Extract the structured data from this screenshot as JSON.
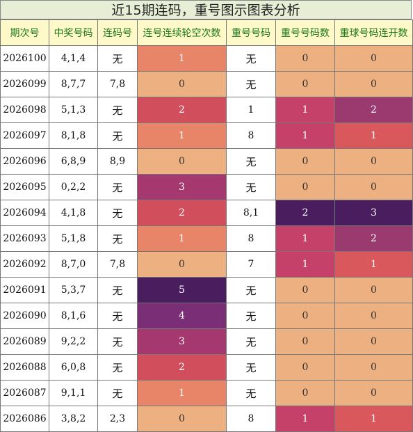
{
  "title": "近15期连码，重号图示图表分析",
  "headers": [
    "期次号",
    "中奖号码",
    "连码号",
    "连号连续轮空次数",
    "重号号码",
    "重号号码数",
    "重球号码连开数"
  ],
  "colors": {
    "0": "#edb080",
    "1": "#e88468",
    "2": "#d14e5c",
    "3": "#a5396f",
    "4": "#7a2e75",
    "5": "#4a1e5e",
    "h1": "#c5416a",
    "h2": "#4a1e5e",
    "g1": "#d8585c",
    "g2": "#9a3a6e",
    "g3": "#4a1e5e"
  },
  "rows": [
    {
      "period": "2026100",
      "numbers": "4,1,4",
      "consec": "无",
      "gap": "1",
      "repeat": "无",
      "repeat_count": "0",
      "repeat_run": "0"
    },
    {
      "period": "2026099",
      "numbers": "8,7,7",
      "consec": "7,8",
      "gap": "0",
      "repeat": "无",
      "repeat_count": "0",
      "repeat_run": "0"
    },
    {
      "period": "2026098",
      "numbers": "5,1,3",
      "consec": "无",
      "gap": "2",
      "repeat": "1",
      "repeat_count": "1",
      "repeat_run": "2"
    },
    {
      "period": "2026097",
      "numbers": "8,1,8",
      "consec": "无",
      "gap": "1",
      "repeat": "8",
      "repeat_count": "1",
      "repeat_run": "1"
    },
    {
      "period": "2026096",
      "numbers": "6,8,9",
      "consec": "8,9",
      "gap": "0",
      "repeat": "无",
      "repeat_count": "0",
      "repeat_run": "0"
    },
    {
      "period": "2026095",
      "numbers": "0,2,2",
      "consec": "无",
      "gap": "3",
      "repeat": "无",
      "repeat_count": "0",
      "repeat_run": "0"
    },
    {
      "period": "2026094",
      "numbers": "4,1,8",
      "consec": "无",
      "gap": "2",
      "repeat": "8,1",
      "repeat_count": "2",
      "repeat_run": "3"
    },
    {
      "period": "2026093",
      "numbers": "5,1,8",
      "consec": "无",
      "gap": "1",
      "repeat": "8",
      "repeat_count": "1",
      "repeat_run": "2"
    },
    {
      "period": "2026092",
      "numbers": "8,7,0",
      "consec": "7,8",
      "gap": "0",
      "repeat": "7",
      "repeat_count": "1",
      "repeat_run": "1"
    },
    {
      "period": "2026091",
      "numbers": "5,3,7",
      "consec": "无",
      "gap": "5",
      "repeat": "无",
      "repeat_count": "0",
      "repeat_run": "0"
    },
    {
      "period": "2026090",
      "numbers": "8,1,6",
      "consec": "无",
      "gap": "4",
      "repeat": "无",
      "repeat_count": "0",
      "repeat_run": "0"
    },
    {
      "period": "2026089",
      "numbers": "9,2,2",
      "consec": "无",
      "gap": "3",
      "repeat": "无",
      "repeat_count": "0",
      "repeat_run": "0"
    },
    {
      "period": "2026088",
      "numbers": "6,0,8",
      "consec": "无",
      "gap": "2",
      "repeat": "无",
      "repeat_count": "0",
      "repeat_run": "0"
    },
    {
      "period": "2026087",
      "numbers": "9,1,1",
      "consec": "无",
      "gap": "1",
      "repeat": "无",
      "repeat_count": "0",
      "repeat_run": "0"
    },
    {
      "period": "2026086",
      "numbers": "3,8,2",
      "consec": "2,3",
      "gap": "0",
      "repeat": "8",
      "repeat_count": "1",
      "repeat_run": "1"
    }
  ]
}
